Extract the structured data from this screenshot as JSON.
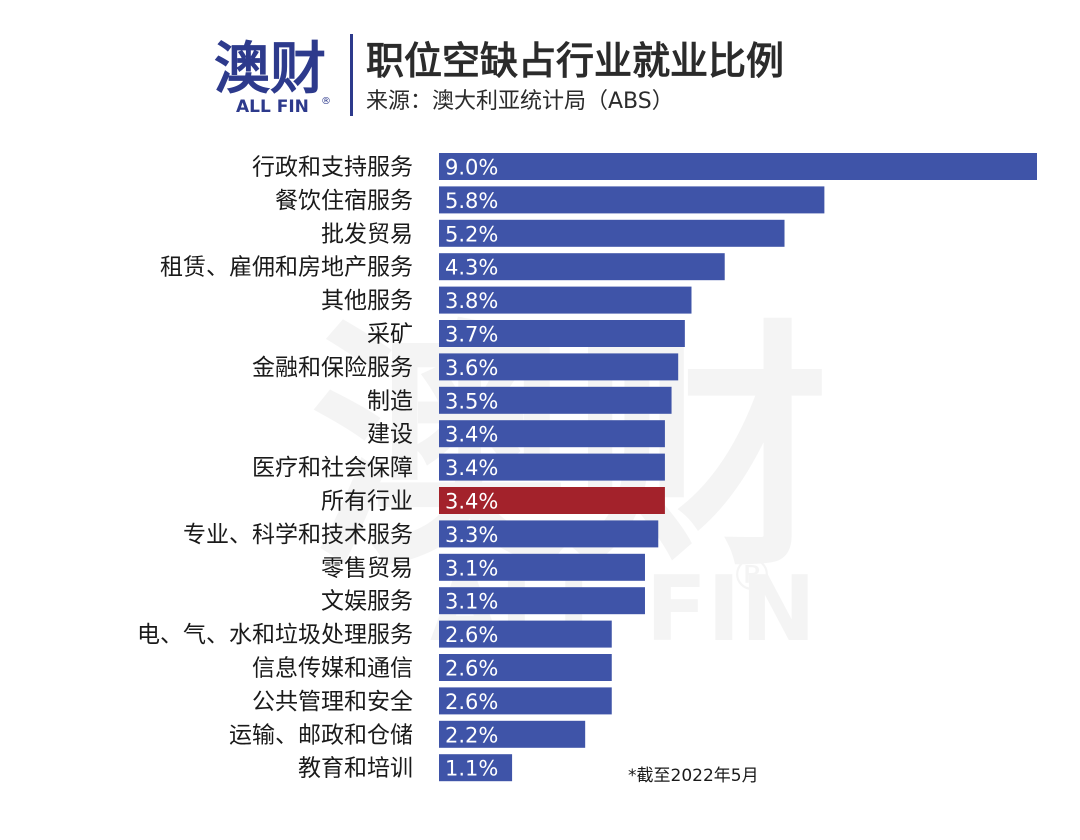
{
  "logo": {
    "cn_text": "澳财",
    "en_text": "ALL FIN",
    "registered_mark": "®",
    "cn_color": "#2d3a8c",
    "accent_color": "#c9243a"
  },
  "header": {
    "title": "职位空缺占行业就业比例",
    "source": "来源：澳大利亚统计局（ABS）"
  },
  "footnote": "*截至2022年5月",
  "chart_data": {
    "type": "bar",
    "orientation": "horizontal",
    "title": "职位空缺占行业就业比例",
    "xlabel": "",
    "ylabel": "",
    "grid": false,
    "xlim": [
      0,
      9
    ],
    "unit": "%",
    "default_color": "#3f54a8",
    "highlight_color": "#a3222b",
    "categories": [
      "行政和支持服务",
      "餐饮住宿服务",
      "批发贸易",
      "租赁、雇佣和房地产服务",
      "其他服务",
      "采矿",
      "金融和保险服务",
      "制造",
      "建设",
      "医疗和社会保障",
      "所有行业",
      "专业、科学和技术服务",
      "零售贸易",
      "文娱服务",
      "电、气、水和垃圾处理服务",
      "信息传媒和通信",
      "公共管理和安全",
      "运输、邮政和仓储",
      "教育和培训"
    ],
    "values": [
      9.0,
      5.8,
      5.2,
      4.3,
      3.8,
      3.7,
      3.6,
      3.5,
      3.4,
      3.4,
      3.4,
      3.3,
      3.1,
      3.1,
      2.6,
      2.6,
      2.6,
      2.2,
      1.1
    ],
    "value_labels": [
      "9.0%",
      "5.8%",
      "5.2%",
      "4.3%",
      "3.8%",
      "3.7%",
      "3.6%",
      "3.5%",
      "3.4%",
      "3.4%",
      "3.4%",
      "3.3%",
      "3.1%",
      "3.1%",
      "2.6%",
      "2.6%",
      "2.6%",
      "2.2%",
      "1.1%"
    ],
    "highlight_category": "所有行业"
  }
}
